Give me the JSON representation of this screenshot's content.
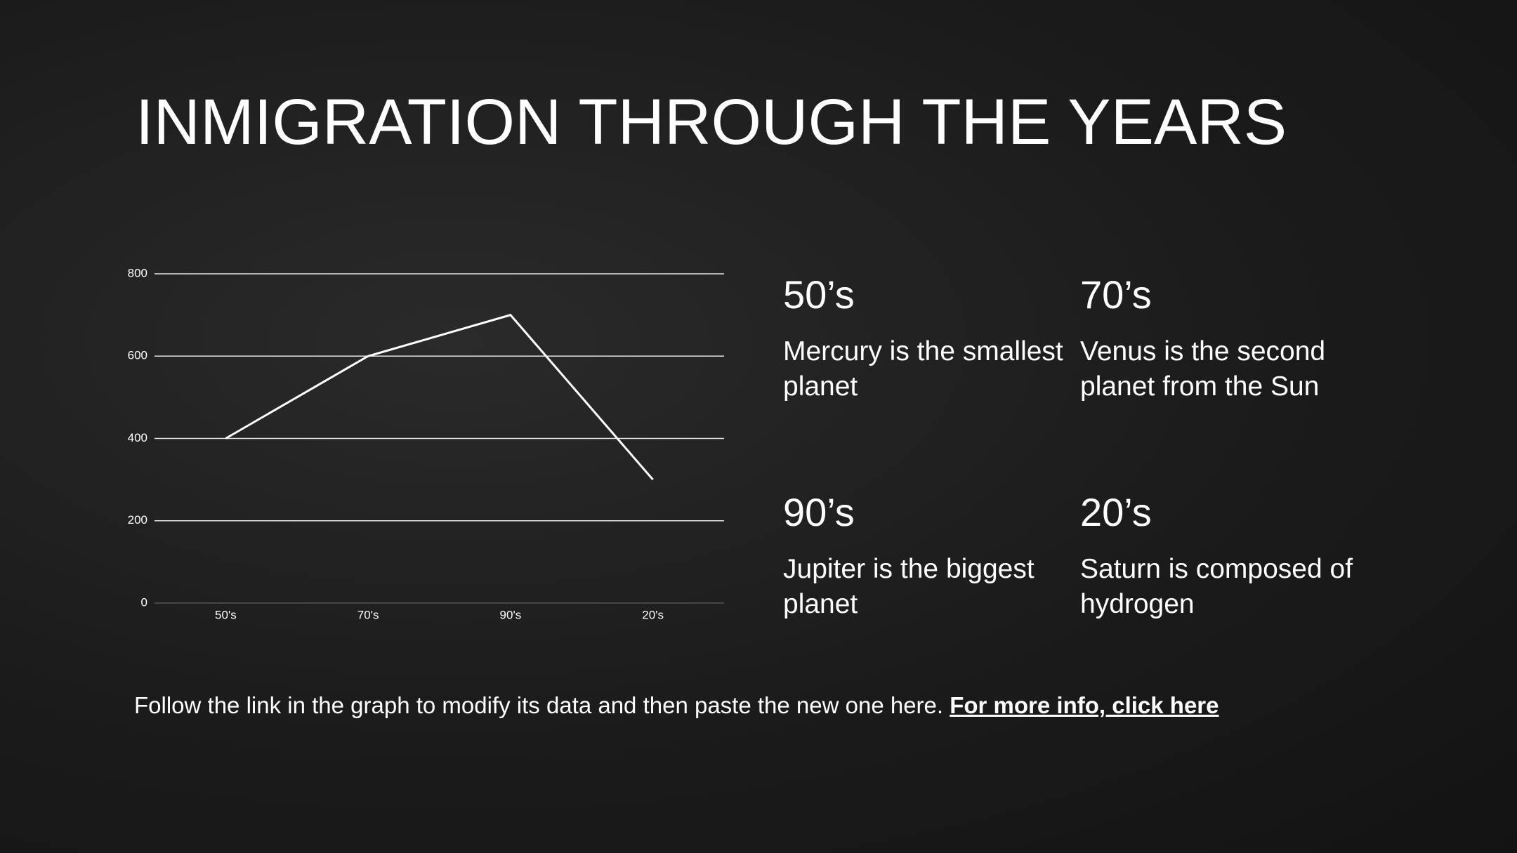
{
  "title": "INMIGRATION THROUGH THE YEARS",
  "chart_data": {
    "type": "line",
    "categories": [
      "50's",
      "70's",
      "90's",
      "20's"
    ],
    "values": [
      400,
      600,
      700,
      300
    ],
    "color": "#ffffff",
    "ylim": [
      0,
      800
    ],
    "yticks": [
      0,
      200,
      400,
      600,
      800
    ],
    "grid": true
  },
  "items": [
    {
      "heading": "50’s",
      "text": "Mercury is the smallest planet"
    },
    {
      "heading": "70’s",
      "text": "Venus is the second planet from the Sun"
    },
    {
      "heading": "90’s",
      "text": "Jupiter is the biggest planet"
    },
    {
      "heading": "20’s",
      "text": "Saturn is composed of hydrogen"
    }
  ],
  "footer": {
    "text": "Follow the link in the graph to modify its data and then paste the new one here.",
    "link": "For more info, click here"
  }
}
